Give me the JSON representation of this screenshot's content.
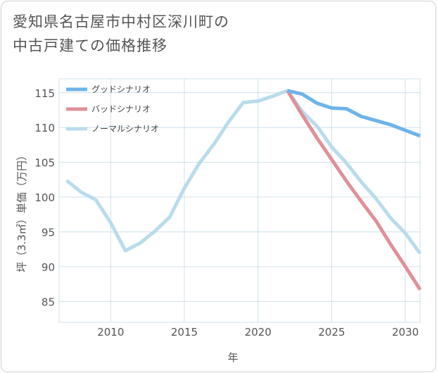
{
  "title_lines": [
    "愛知県名古屋市中村区深川町の",
    "中古戸建ての価格推移"
  ],
  "chart_data": {
    "type": "line",
    "xlabel": "年",
    "ylabel": "坪（3.3㎡）単価（万円）",
    "xlim": [
      2006.5,
      2031
    ],
    "ylim": [
      82,
      117
    ],
    "x_ticks": [
      2010,
      2015,
      2020,
      2025,
      2030
    ],
    "y_ticks": [
      85,
      90,
      95,
      100,
      105,
      110,
      115
    ],
    "grid": true,
    "legend_position": "top-left",
    "series": [
      {
        "name": "グッドシナリオ",
        "color": "#6cb4ea",
        "x": [
          2022,
          2023,
          2024,
          2025,
          2026,
          2027,
          2028,
          2029,
          2030,
          2031
        ],
        "y": [
          115.3,
          114.8,
          113.5,
          112.8,
          112.7,
          111.6,
          111.0,
          110.4,
          109.6,
          108.8
        ]
      },
      {
        "name": "バッドシナリオ",
        "color": "#e0909a",
        "x": [
          2022,
          2023,
          2024,
          2025,
          2026,
          2027,
          2028,
          2029,
          2030,
          2031
        ],
        "y": [
          115.3,
          111.8,
          108.5,
          105.4,
          102.3,
          99.4,
          96.6,
          93.2,
          90.0,
          86.7
        ]
      },
      {
        "name": "ノーマルシナリオ",
        "color": "#b9dcec",
        "x": [
          2007,
          2008,
          2009,
          2010,
          2011,
          2012,
          2013,
          2014,
          2015,
          2016,
          2017,
          2018,
          2019,
          2020,
          2021,
          2022,
          2023,
          2024,
          2025,
          2026,
          2027,
          2028,
          2029,
          2030,
          2031
        ],
        "y": [
          102.4,
          100.7,
          99.6,
          96.3,
          92.3,
          93.4,
          95.1,
          97.1,
          101.3,
          104.8,
          107.6,
          110.8,
          113.6,
          113.8,
          114.5,
          115.3,
          112.3,
          110.2,
          107.2,
          104.9,
          102.2,
          99.8,
          97.0,
          94.8,
          91.9
        ]
      }
    ]
  }
}
